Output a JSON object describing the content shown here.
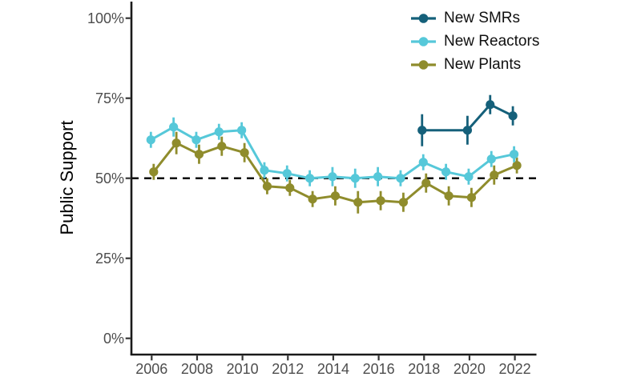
{
  "chart_data": {
    "type": "line",
    "title": "",
    "xlabel": "",
    "ylabel": "Public Support",
    "ylim": [
      0,
      100
    ],
    "xlim": [
      2005.2,
      2022.9
    ],
    "grid": false,
    "legend_position": "top-right",
    "reference_line": {
      "value": 50,
      "style": "dashed",
      "color": "#000000"
    },
    "x_ticks": [
      2006,
      2008,
      2010,
      2012,
      2014,
      2016,
      2018,
      2020,
      2022
    ],
    "y_ticks": [
      {
        "value": 0,
        "label": "0%"
      },
      {
        "value": 25,
        "label": "25%"
      },
      {
        "value": 50,
        "label": "50%"
      },
      {
        "value": 75,
        "label": "75%"
      },
      {
        "value": 100,
        "label": "100%"
      }
    ],
    "axis_color": "#1A1A1A",
    "tick_label_color": "#4D4D4D",
    "series": [
      {
        "name": "New SMRs",
        "color": "#15607A",
        "years": [
          2018,
          2020,
          2021,
          2022
        ],
        "values": [
          65,
          65,
          73,
          69.5
        ],
        "errors": [
          5,
          4.5,
          3,
          3
        ]
      },
      {
        "name": "New Reactors",
        "color": "#56C8D9",
        "years": [
          2006,
          2007,
          2008,
          2009,
          2010,
          2011,
          2012,
          2013,
          2014,
          2015,
          2016,
          2017,
          2018,
          2019,
          2020,
          2021,
          2022
        ],
        "values": [
          62,
          66,
          62,
          64.5,
          65,
          52.5,
          51.5,
          50,
          50.5,
          50,
          50.5,
          50,
          55,
          52,
          50.5,
          56,
          57.5
        ],
        "errors": [
          2.5,
          3,
          2.5,
          2.5,
          2.5,
          2.5,
          2.5,
          2.5,
          3,
          3,
          3,
          2.5,
          2.5,
          2.5,
          2.5,
          2.5,
          2.5
        ]
      },
      {
        "name": "New Plants",
        "color": "#8F8C2C",
        "years": [
          2006,
          2007,
          2008,
          2009,
          2010,
          2011,
          2012,
          2013,
          2014,
          2015,
          2016,
          2017,
          2018,
          2019,
          2020,
          2021,
          2022
        ],
        "values": [
          52,
          61,
          57.5,
          60,
          58,
          47.5,
          47,
          43.5,
          44.5,
          42.5,
          43,
          42.5,
          48.5,
          44.5,
          44,
          51,
          54
        ],
        "errors": [
          2.5,
          3.5,
          3,
          3,
          3,
          2.5,
          2.5,
          2.5,
          3,
          3.5,
          3,
          3,
          3,
          3,
          3,
          3,
          2.5
        ]
      }
    ]
  }
}
